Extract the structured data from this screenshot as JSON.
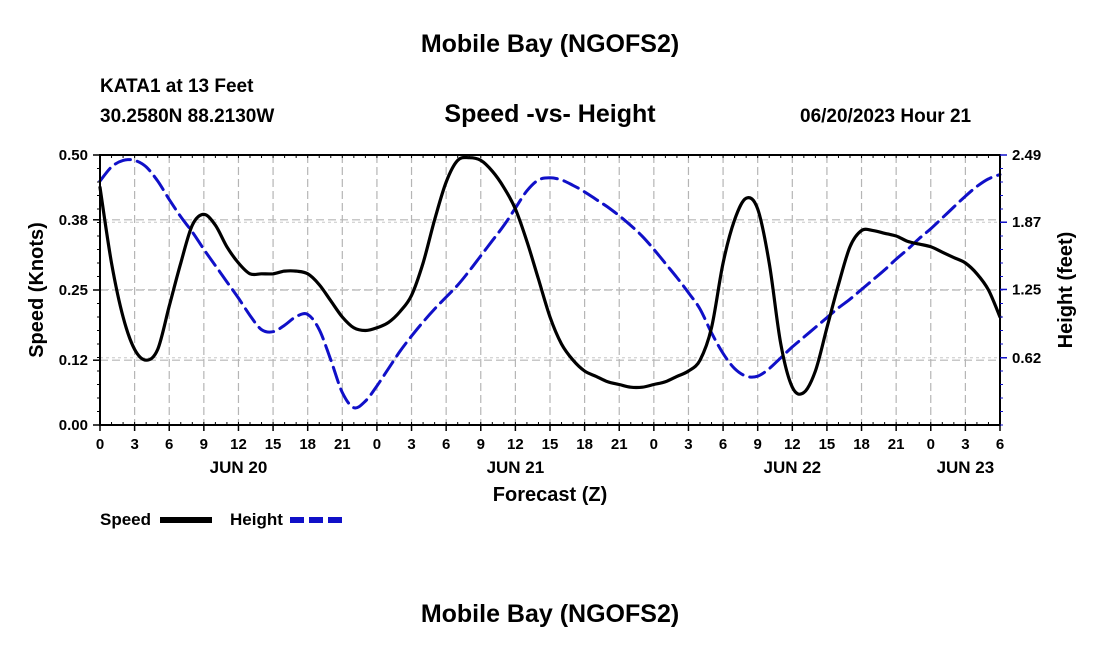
{
  "page": {
    "title_top": "Mobile Bay (NGOFS2)",
    "station": "KATA1 at 13 Feet",
    "coords": "30.2580N  88.2130W",
    "subtitle": "Speed -vs- Height",
    "datetime": "06/20/2023 Hour 21",
    "title_bottom": "Mobile Bay (NGOFS2)"
  },
  "chart_data": {
    "type": "line",
    "xlabel": "Forecast (Z)",
    "ylabel_left": "Speed (Knots)",
    "ylabel_right": "Height (feet)",
    "x_range_hours": [
      0,
      78
    ],
    "x_tick_labels": [
      "0",
      "3",
      "6",
      "9",
      "12",
      "15",
      "18",
      "21",
      "0",
      "3",
      "6",
      "9",
      "12",
      "15",
      "18",
      "21",
      "0",
      "3",
      "6",
      "9",
      "12",
      "15",
      "18",
      "21",
      "0",
      "3",
      "6"
    ],
    "date_labels": [
      {
        "label": "JUN 20",
        "hour": 12
      },
      {
        "label": "JUN 21",
        "hour": 36
      },
      {
        "label": "JUN 22",
        "hour": 60
      },
      {
        "label": "JUN 23",
        "hour": 75
      }
    ],
    "y_left": {
      "range": [
        0,
        0.5
      ],
      "ticks": [
        0.0,
        0.12,
        0.25,
        0.38,
        0.5
      ],
      "tick_labels": [
        "0.00",
        "0.12",
        "0.25",
        "0.38",
        "0.50"
      ]
    },
    "y_right": {
      "range": [
        0,
        2.49
      ],
      "ticks": [
        0.62,
        1.25,
        1.87,
        2.49
      ],
      "tick_labels": [
        "0.62",
        "1.25",
        "1.87",
        "2.49"
      ]
    },
    "grid": true,
    "legend_position": "bottom-left",
    "colors": {
      "speed": "#000000",
      "height": "#1010c8"
    },
    "series": [
      {
        "name": "Speed",
        "axis": "left",
        "style": "solid",
        "x": [
          0,
          1,
          2,
          3,
          4,
          5,
          6,
          7,
          8,
          9,
          10,
          11,
          12,
          13,
          14,
          15,
          16,
          17,
          18,
          19,
          20,
          21,
          22,
          23,
          24,
          25,
          26,
          27,
          28,
          29,
          30,
          31,
          32,
          33,
          34,
          35,
          36,
          37,
          38,
          39,
          40,
          41,
          42,
          43,
          44,
          45,
          46,
          47,
          48,
          49,
          50,
          51,
          52,
          53,
          54,
          55,
          56,
          57,
          58,
          59,
          60,
          61,
          62,
          63,
          64,
          65,
          66,
          67,
          68,
          69,
          70,
          71,
          72,
          73,
          74,
          75,
          76,
          77,
          78
        ],
        "values": [
          0.44,
          0.3,
          0.2,
          0.14,
          0.12,
          0.14,
          0.22,
          0.3,
          0.37,
          0.39,
          0.37,
          0.33,
          0.3,
          0.28,
          0.28,
          0.28,
          0.285,
          0.285,
          0.28,
          0.26,
          0.23,
          0.2,
          0.18,
          0.175,
          0.18,
          0.19,
          0.21,
          0.24,
          0.3,
          0.38,
          0.45,
          0.49,
          0.495,
          0.49,
          0.47,
          0.44,
          0.4,
          0.34,
          0.27,
          0.2,
          0.15,
          0.12,
          0.1,
          0.09,
          0.08,
          0.075,
          0.07,
          0.07,
          0.075,
          0.08,
          0.09,
          0.1,
          0.12,
          0.18,
          0.3,
          0.38,
          0.42,
          0.4,
          0.3,
          0.15,
          0.07,
          0.06,
          0.1,
          0.18,
          0.26,
          0.33,
          0.36,
          0.36,
          0.355,
          0.35,
          0.34,
          0.335,
          0.33,
          0.32,
          0.31,
          0.3,
          0.28,
          0.25,
          0.2
        ]
      },
      {
        "name": "Height",
        "axis": "right",
        "style": "dashed",
        "x": [
          0,
          1,
          2,
          3,
          4,
          5,
          6,
          7,
          8,
          9,
          10,
          11,
          12,
          13,
          14,
          15,
          16,
          17,
          18,
          19,
          20,
          21,
          22,
          23,
          24,
          25,
          26,
          27,
          28,
          29,
          30,
          31,
          32,
          33,
          34,
          35,
          36,
          37,
          38,
          39,
          40,
          41,
          42,
          43,
          44,
          45,
          46,
          47,
          48,
          49,
          50,
          51,
          52,
          53,
          54,
          55,
          56,
          57,
          58,
          59,
          60,
          61,
          62,
          63,
          64,
          65,
          66,
          67,
          68,
          69,
          70,
          71,
          72,
          73,
          74,
          75,
          76,
          77,
          78
        ],
        "values": [
          2.25,
          2.38,
          2.44,
          2.44,
          2.38,
          2.25,
          2.08,
          1.92,
          1.78,
          1.62,
          1.47,
          1.32,
          1.17,
          1.01,
          0.88,
          0.86,
          0.92,
          1.0,
          1.02,
          0.88,
          0.6,
          0.3,
          0.16,
          0.22,
          0.36,
          0.52,
          0.68,
          0.82,
          0.95,
          1.07,
          1.18,
          1.29,
          1.42,
          1.56,
          1.7,
          1.84,
          2.0,
          2.16,
          2.26,
          2.28,
          2.26,
          2.21,
          2.15,
          2.08,
          2.01,
          1.93,
          1.84,
          1.74,
          1.62,
          1.49,
          1.36,
          1.22,
          1.07,
          0.85,
          0.66,
          0.52,
          0.45,
          0.45,
          0.52,
          0.62,
          0.72,
          0.81,
          0.9,
          0.99,
          1.08,
          1.16,
          1.25,
          1.34,
          1.43,
          1.53,
          1.62,
          1.72,
          1.81,
          1.91,
          2.01,
          2.11,
          2.2,
          2.27,
          2.31
        ]
      }
    ]
  }
}
